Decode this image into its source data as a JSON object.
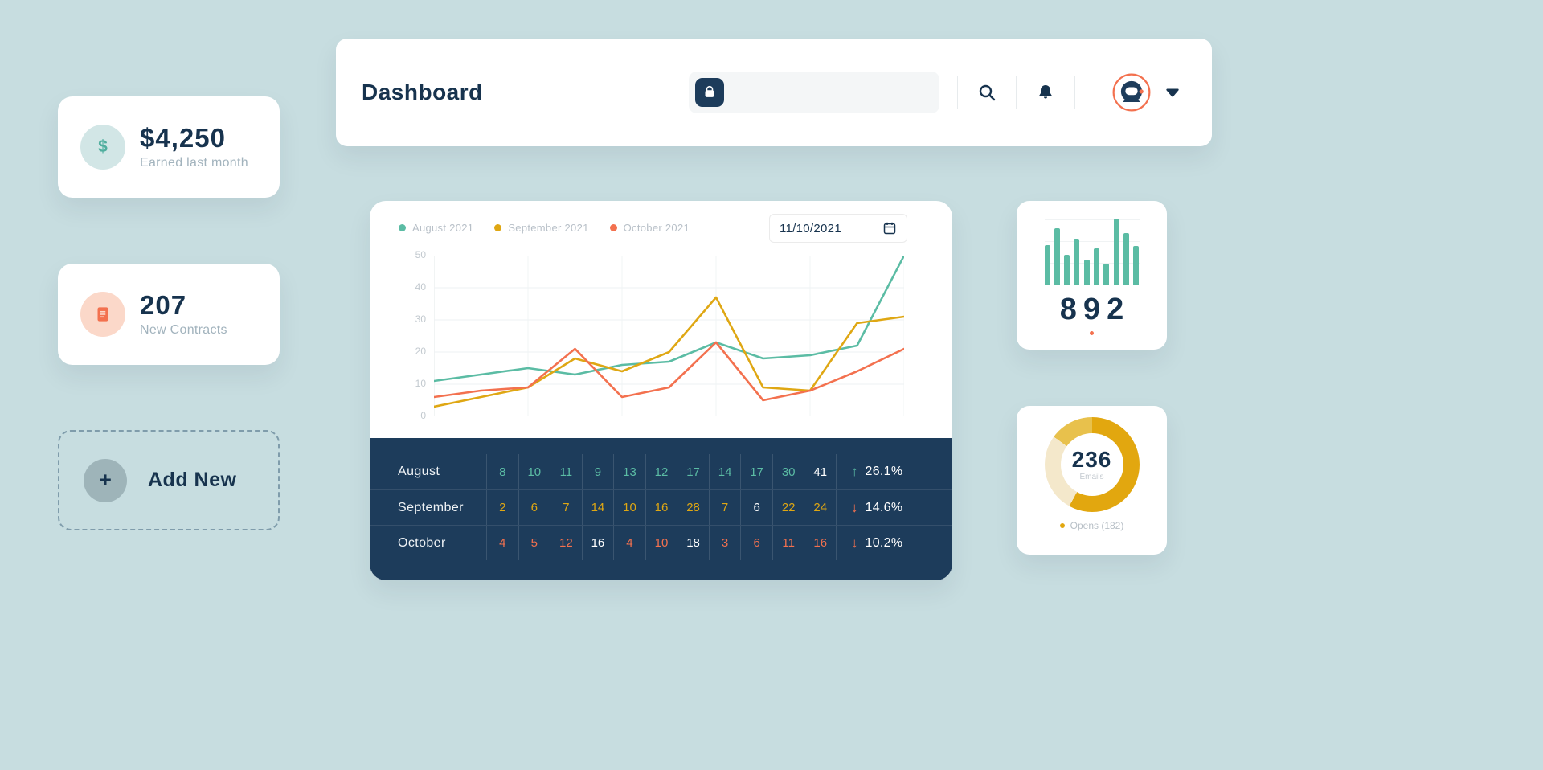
{
  "colors": {
    "background": "#c7dde0",
    "navy": "#17334e",
    "table_bg": "#1d3c5b",
    "teal": "#5bbca4",
    "gold": "#dfa713",
    "orange": "#f3714f",
    "muted_text": "#a2b3bd"
  },
  "header": {
    "title": "Dashboard",
    "search": {
      "value": ""
    }
  },
  "cards": {
    "earnings": {
      "icon": "$",
      "value": "$4,250",
      "label": "Earned last month"
    },
    "contracts": {
      "value": "207",
      "label": "New Contracts"
    },
    "add_new": {
      "plus": "+",
      "label": "Add New"
    }
  },
  "chart_card": {
    "date_value": "11/10/2021",
    "legend": [
      {
        "label": "August 2021",
        "color": "#5bbca4"
      },
      {
        "label": "September 2021",
        "color": "#dfa713"
      },
      {
        "label": "October 2021",
        "color": "#f3714f"
      }
    ]
  },
  "chart_data": [
    {
      "id": "monthly-line-chart",
      "type": "line",
      "x_count": 11,
      "ylim": [
        0,
        50
      ],
      "y_ticks": [
        50,
        40,
        30,
        20,
        10,
        0
      ],
      "grid": true,
      "legend_position": "top-left",
      "date_filter": "11/10/2021",
      "series": [
        {
          "name": "August 2021",
          "color": "#5bbca4",
          "values": [
            11,
            13,
            15,
            13,
            16,
            17,
            23,
            18,
            19,
            22,
            50
          ]
        },
        {
          "name": "September 2021",
          "color": "#dfa713",
          "values": [
            3,
            6,
            9,
            18,
            14,
            20,
            37,
            9,
            8,
            29,
            31
          ]
        },
        {
          "name": "October 2021",
          "color": "#f3714f",
          "values": [
            6,
            8,
            9,
            21,
            6,
            9,
            23,
            5,
            8,
            14,
            21
          ]
        }
      ],
      "table": {
        "rows": [
          {
            "label": "August",
            "color": "#5bbca4",
            "values": [
              "8",
              "10",
              "11",
              "9",
              "13",
              "12",
              "17",
              "14",
              "17",
              "30",
              "41"
            ],
            "highlight": [
              10
            ],
            "trend_dir": "up",
            "trend_value": "26.1%"
          },
          {
            "label": "September",
            "color": "#dfa713",
            "values": [
              "2",
              "6",
              "7",
              "14",
              "10",
              "16",
              "28",
              "7",
              "6",
              "22",
              "24"
            ],
            "highlight": [
              8
            ],
            "trend_dir": "down",
            "trend_value": "14.6%"
          },
          {
            "label": "October",
            "color": "#f3714f",
            "values": [
              "4",
              "5",
              "12",
              "16",
              "4",
              "10",
              "18",
              "3",
              "6",
              "11",
              "16"
            ],
            "highlight": [
              3,
              6
            ],
            "trend_dir": "down",
            "trend_value": "10.2%"
          }
        ]
      }
    },
    {
      "id": "mini-bar-chart",
      "type": "bar",
      "color": "#5bbca4",
      "values": [
        60,
        85,
        45,
        70,
        38,
        55,
        32,
        100,
        78,
        58
      ],
      "total_label": "892",
      "accent_dot_color": "#f3714f"
    },
    {
      "id": "emails-donut",
      "type": "pie",
      "center_value": "236",
      "center_label": "Emails",
      "legend_label": "Opens (182)",
      "segments": [
        {
          "label": "Opens",
          "color": "#e2a70f",
          "pct": 58
        },
        {
          "color": "#f4e8cb",
          "pct": 27
        },
        {
          "color": "#e8c14c",
          "pct": 15
        }
      ]
    }
  ]
}
